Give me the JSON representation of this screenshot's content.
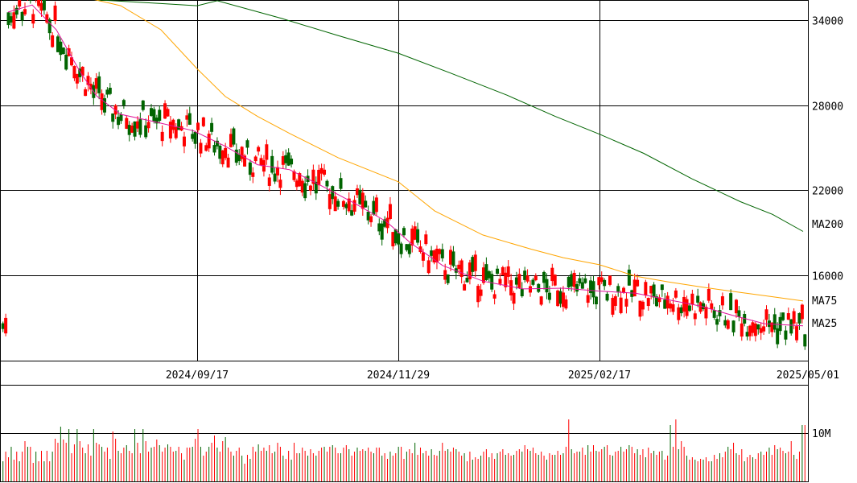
{
  "chart_data": [
    {
      "type": "candlestick",
      "title": "",
      "x_labels": [
        "2024/09/17",
        "2024/11/29",
        "2025/02/17",
        "2025/05/01"
      ],
      "y_ticks": [
        34000,
        28000,
        22000,
        16000
      ],
      "ylim": [
        10000,
        35400
      ],
      "grid": true,
      "colors": {
        "up": "#006400",
        "down": "#ff0000",
        "ma25": "#e0109a",
        "ma75": "#ffa500",
        "ma200": "#006400"
      },
      "moving_averages": [
        {
          "name": "MA200",
          "color": "#006400",
          "values": [
            [
              55,
              35600
            ],
            [
              90,
              35500
            ],
            [
              140,
              35350
            ],
            [
              200,
              35150
            ],
            [
              245,
              35000
            ],
            [
              270,
              35350
            ],
            [
              350,
              34100
            ],
            [
              420,
              32900
            ],
            [
              495,
              31650
            ],
            [
              560,
              30250
            ],
            [
              630,
              28700
            ],
            [
              690,
              27200
            ],
            [
              745,
              25950
            ],
            [
              800,
              24600
            ],
            [
              860,
              22800
            ],
            [
              920,
              21200
            ],
            [
              960,
              20300
            ],
            [
              998,
              19100
            ]
          ]
        },
        {
          "name": "MA75",
          "color": "#ffa500",
          "values": [
            [
              108,
              35550
            ],
            [
              150,
              35000
            ],
            [
              200,
              33300
            ],
            [
              245,
              30550
            ],
            [
              280,
              28600
            ],
            [
              320,
              27200
            ],
            [
              360,
              26000
            ],
            [
              420,
              24300
            ],
            [
              495,
              22600
            ],
            [
              540,
              20550
            ],
            [
              600,
              18850
            ],
            [
              660,
              17850
            ],
            [
              700,
              17250
            ],
            [
              745,
              16750
            ],
            [
              790,
              15950
            ],
            [
              830,
              15550
            ],
            [
              870,
              15200
            ],
            [
              920,
              14800
            ],
            [
              960,
              14500
            ],
            [
              998,
              14200
            ]
          ]
        },
        {
          "name": "MA25",
          "color": "#e0109a",
          "values": [
            [
              10,
              34550
            ],
            [
              40,
              35050
            ],
            [
              70,
              33300
            ],
            [
              100,
              30300
            ],
            [
              120,
              28650
            ],
            [
              150,
              27350
            ],
            [
              190,
              26850
            ],
            [
              240,
              26200
            ],
            [
              280,
              25100
            ],
            [
              320,
              23800
            ],
            [
              360,
              23450
            ],
            [
              400,
              22300
            ],
            [
              440,
              21100
            ],
            [
              480,
              19800
            ],
            [
              510,
              18300
            ],
            [
              550,
              16700
            ],
            [
              600,
              15600
            ],
            [
              650,
              15050
            ],
            [
              700,
              15100
            ],
            [
              745,
              14900
            ],
            [
              790,
              14750
            ],
            [
              830,
              14300
            ],
            [
              870,
              13850
            ],
            [
              910,
              13200
            ],
            [
              950,
              12600
            ],
            [
              998,
              12450
            ]
          ]
        }
      ]
    },
    {
      "type": "bar",
      "title": "",
      "ylabel": "",
      "y_ticks": [
        "10M"
      ],
      "volume_unit_label": "10M",
      "ylim_millions": [
        0,
        12
      ],
      "values_millions": [
        2.5,
        3.7,
        3.0,
        4.3,
        2.7,
        3.7,
        2.5,
        3.7,
        5.0,
        4.3,
        4.3,
        2.3,
        3.7,
        2.5,
        3.8,
        2.5,
        3.8,
        2.5,
        3.7,
        5.3,
        4.8,
        6.8,
        5.2,
        4.8,
        6.5,
        3.5,
        4.6,
        6.5,
        5.0,
        4.2,
        3.5,
        4.6,
        3.2,
        6.5,
        4.8,
        4.6,
        4.3,
        3.7,
        4.2,
        2.8,
        6.2,
        5.3,
        3.8,
        3.5,
        4.2,
        4.5,
        3.8,
        3.5,
        6.5,
        4.8,
        3.5,
        6.5,
        5.0,
        3.7,
        4.2,
        4.3,
        5.2,
        4.5,
        3.7,
        4.2,
        4.6,
        4.3,
        3.7,
        3.8,
        4.3,
        3.5,
        2.7,
        4.2,
        4.2,
        4.3,
        5.3,
        6.5,
        4.3,
        3.2,
        3.7,
        4.3,
        4.8,
        5.7,
        4.2,
        3.7,
        5.0,
        5.5,
        4.2,
        3.7,
        3.2,
        3.8,
        4.2,
        3.2,
        2.2,
        3.3,
        2.8,
        4.3,
        3.7,
        4.6,
        3.8,
        4.2,
        3.8,
        4.5,
        3.5,
        3.7,
        4.8,
        4.3,
        3.2,
        2.8,
        3.8,
        2.7,
        4.8,
        3.5,
        3.5,
        4.2,
        3.8,
        3.2,
        4.0,
        3.5,
        3.2,
        3.8,
        4.2,
        4.3,
        3.7,
        4.3,
        4.5,
        4.2,
        3.5,
        3.5,
        4.2,
        4.5,
        4.0,
        3.2,
        3.7,
        4.2,
        3.8,
        4.0,
        3.8,
        4.2,
        3.7,
        3.5,
        4.2,
        4.2,
        3.2,
        3.5,
        2.8,
        3.7,
        3.2,
        3.5,
        4.3,
        4.3,
        2.8,
        3.7,
        4.0,
        3.5,
        4.8,
        3.3,
        4.2,
        3.5,
        3.8,
        3.2,
        4.0,
        3.3,
        3.2,
        3.8,
        4.8,
        3.8,
        4.0,
        3.7,
        4.2,
        4.0,
        3.7,
        3.2,
        3.5,
        2.5,
        3.7,
        2.7,
        3.0,
        2.8,
        3.2,
        3.7,
        4.0,
        3.0,
        3.5,
        2.8,
        3.5,
        3.7,
        4.0,
        3.3,
        3.5,
        3.2,
        3.3,
        3.8,
        4.0,
        3.7,
        4.5,
        4.0,
        3.8,
        4.2,
        3.5,
        3.3,
        3.7,
        3.2,
        2.7,
        3.5,
        3.3,
        3.3,
        3.8,
        3.3,
        3.5,
        4.3,
        7.7,
        4.0,
        3.5,
        3.7,
        3.7,
        4.2,
        3.3,
        4.5,
        3.7,
        4.5,
        3.8,
        3.7,
        4.0,
        4.3,
        4.5,
        3.3,
        3.2,
        3.7,
        3.8,
        4.3,
        3.7,
        4.0,
        4.5,
        4.3,
        3.5,
        4.0,
        3.3,
        4.0,
        3.0,
        4.2,
        3.5,
        3.8,
        3.3,
        3.7,
        3.8,
        2.7,
        3.2,
        7.0,
        4.3,
        7.7,
        4.0,
        5.0,
        4.3,
        3.2,
        2.7,
        3.0,
        2.7,
        2.5,
        2.8,
        2.7,
        3.0,
        2.5,
        2.5,
        3.3,
        2.8,
        3.5,
        3.0,
        3.7,
        4.3,
        4.0,
        4.8,
        3.5,
        3.3,
        4.0,
        2.5,
        3.0,
        3.3,
        3.0,
        2.8,
        3.5,
        3.7,
        3.3,
        3.7,
        4.2,
        3.3,
        4.5,
        4.0,
        4.2,
        3.8,
        3.5,
        3.7,
        5.0,
        3.3,
        2.8,
        3.7,
        7.0,
        7.0
      ]
    }
  ],
  "legend": {
    "ma200": "MA200",
    "ma75": "MA75",
    "ma25": "MA25"
  }
}
